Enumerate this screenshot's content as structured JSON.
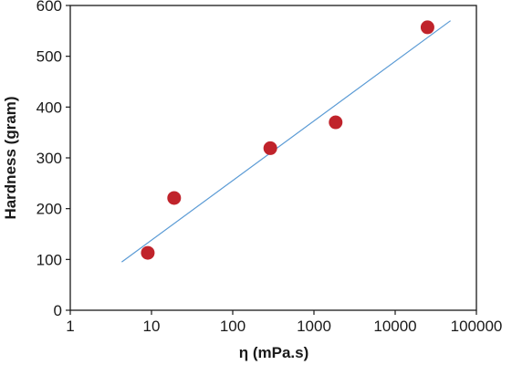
{
  "chart_data": {
    "type": "scatter",
    "title": "",
    "xlabel": "η (mPa.s)",
    "ylabel": "Hardness (gram)",
    "x_scale": "log",
    "xlim": [
      1,
      100000
    ],
    "ylim": [
      0,
      600
    ],
    "x_ticks": [
      1,
      10,
      100,
      1000,
      10000,
      100000
    ],
    "x_tick_labels": [
      "1",
      "10",
      "100",
      "1000",
      "10000",
      "100000"
    ],
    "y_ticks": [
      0,
      100,
      200,
      300,
      400,
      500,
      600
    ],
    "y_tick_labels": [
      "0",
      "100",
      "200",
      "300",
      "400",
      "500",
      "600"
    ],
    "grid": false,
    "legend": "none",
    "series": [
      {
        "kind": "scatter",
        "color": "#c0232b",
        "points": [
          {
            "x": 9,
            "y": 113
          },
          {
            "x": 19,
            "y": 221
          },
          {
            "x": 290,
            "y": 319
          },
          {
            "x": 1850,
            "y": 370
          },
          {
            "x": 25000,
            "y": 557
          }
        ]
      },
      {
        "kind": "trendline",
        "color": "#5b9bd5",
        "points": [
          {
            "x": 4.3,
            "y": 95
          },
          {
            "x": 48000,
            "y": 570
          }
        ]
      }
    ]
  }
}
